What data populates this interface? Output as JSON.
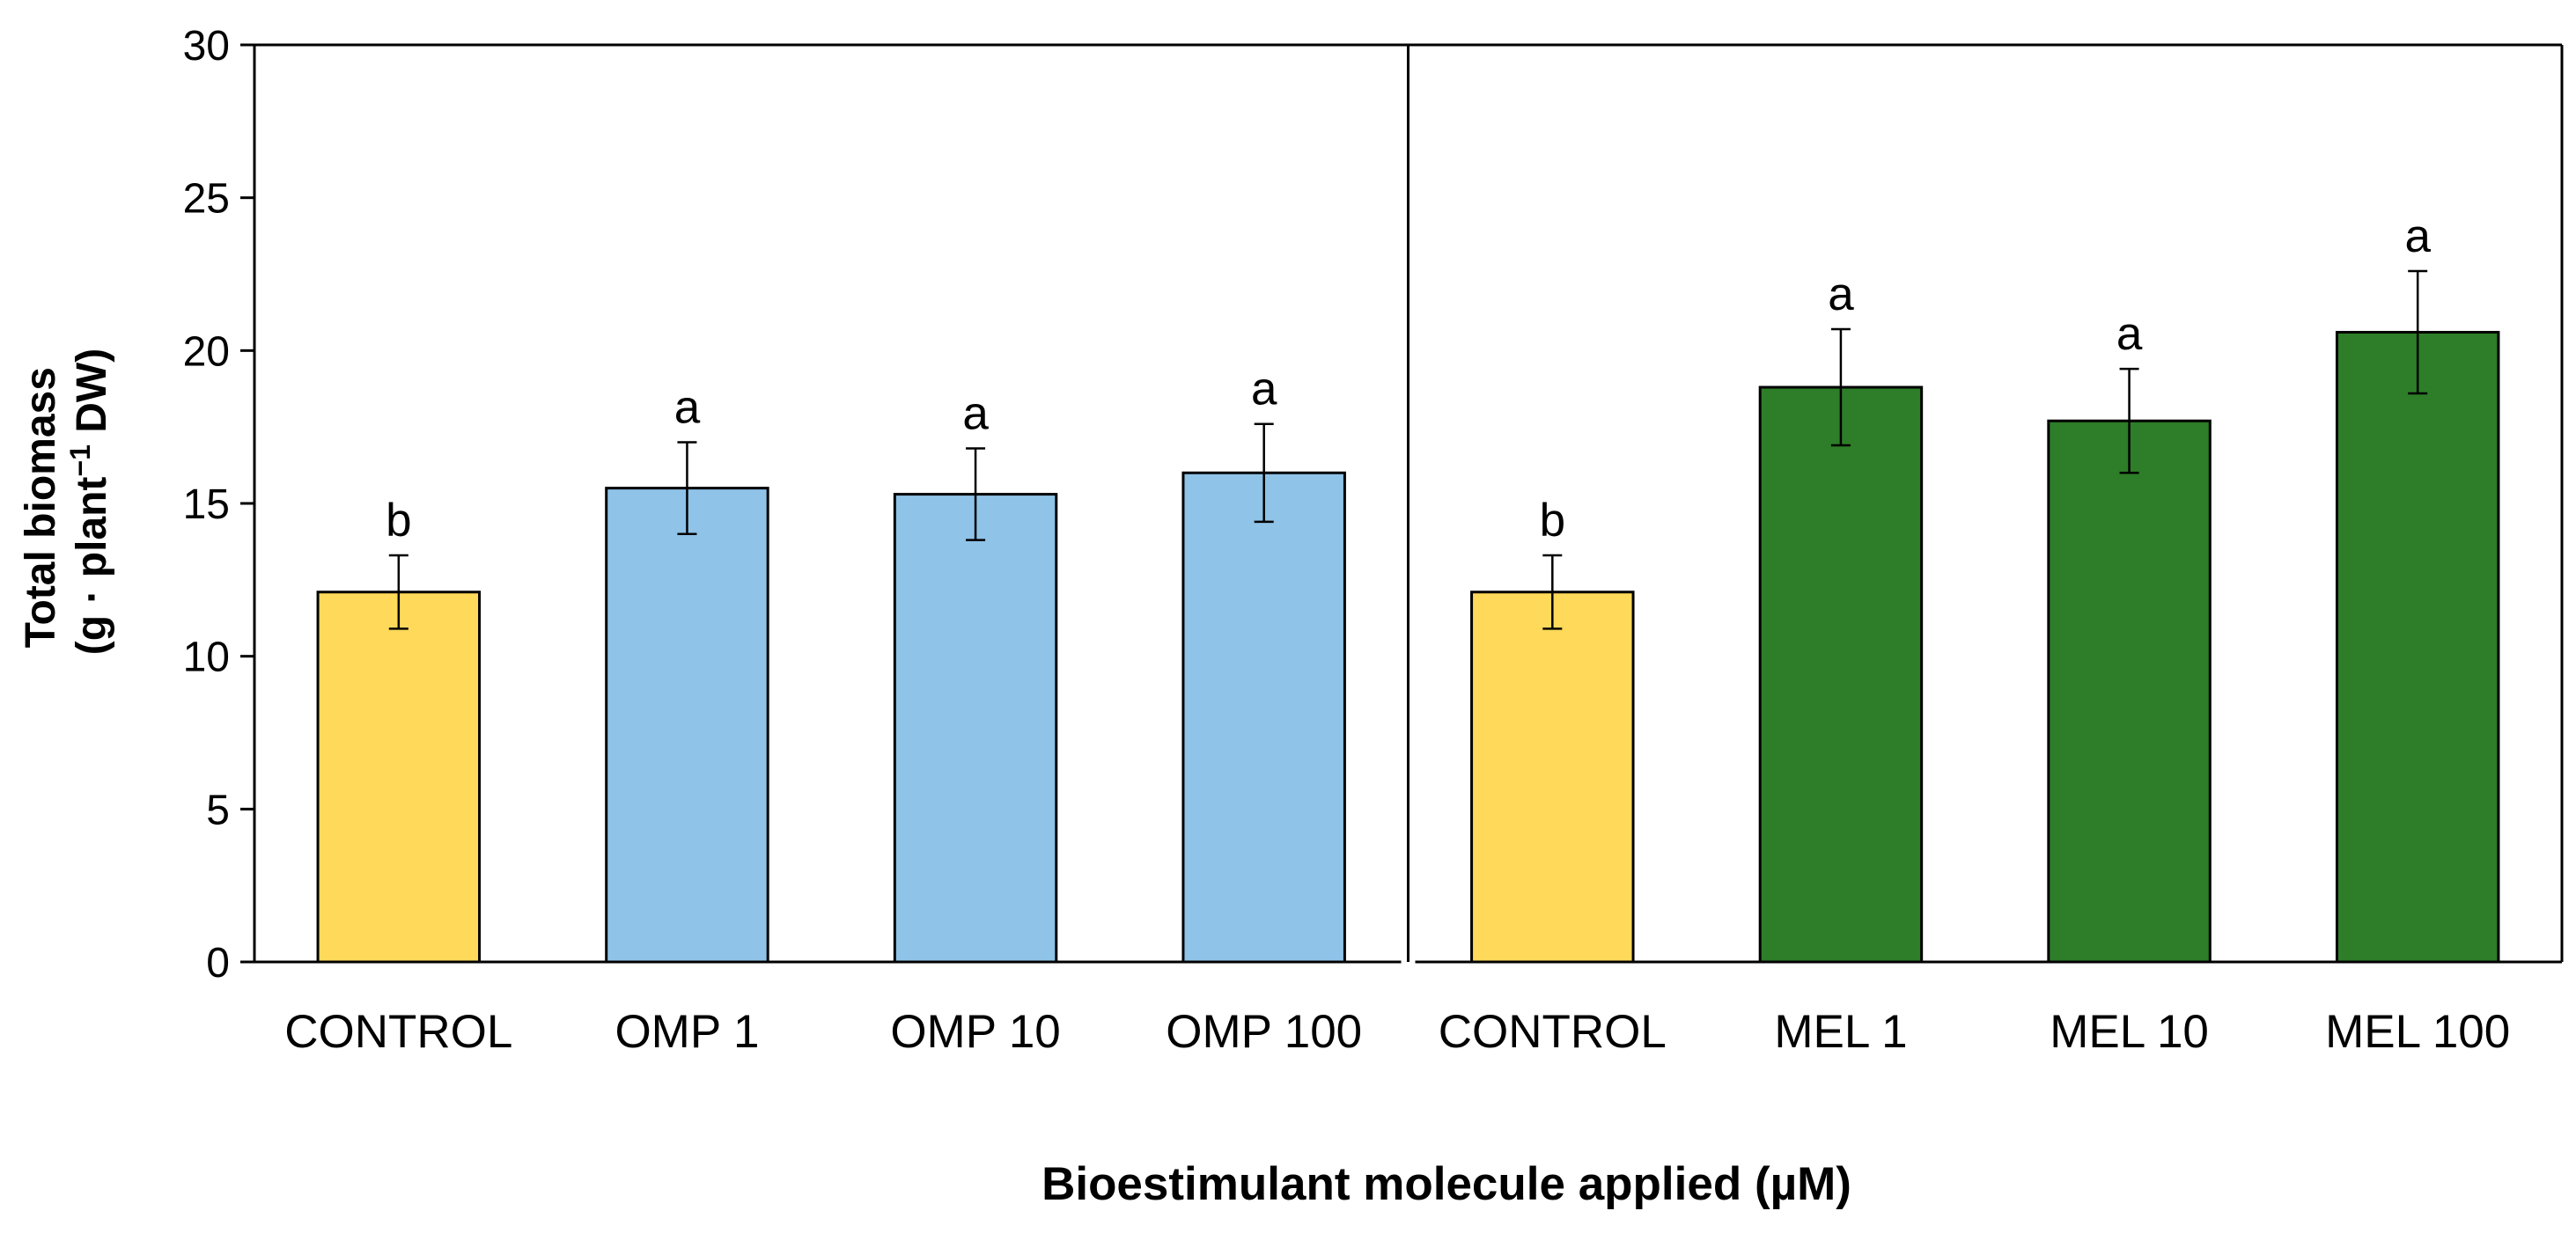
{
  "chart_data": {
    "type": "bar",
    "xlabel": "Bioestimulant molecule applied (µM)",
    "ylabel_line1": "Total biomass",
    "ylabel_line2_pre": "(g · plant",
    "ylabel_sup": "−1",
    "ylabel_line2_post": " DW)",
    "ylim": [
      0,
      30
    ],
    "yticks": [
      "0",
      "5",
      "10",
      "15",
      "20",
      "25",
      "30"
    ],
    "categories": [
      "CONTROL",
      "OMP 1",
      "OMP 10",
      "OMP 100",
      "CONTROL",
      "MEL 1",
      "MEL 10",
      "MEL 100"
    ],
    "values": [
      12.1,
      15.5,
      15.3,
      16.0,
      12.1,
      18.8,
      17.7,
      20.6
    ],
    "errors": [
      1.2,
      1.5,
      1.5,
      1.6,
      1.2,
      1.9,
      1.7,
      2.0
    ],
    "letters": [
      "b",
      "a",
      "a",
      "a",
      "b",
      "a",
      "a",
      "a"
    ],
    "groups": [
      "control",
      "omp",
      "omp",
      "omp",
      "control",
      "mel",
      "mel",
      "mel"
    ],
    "colors": {
      "control": "#FFD95A",
      "omp": "#8FC3E8",
      "mel": "#2E7D28",
      "outline": "#000000"
    },
    "divider_after_index": 3,
    "grid": false
  }
}
